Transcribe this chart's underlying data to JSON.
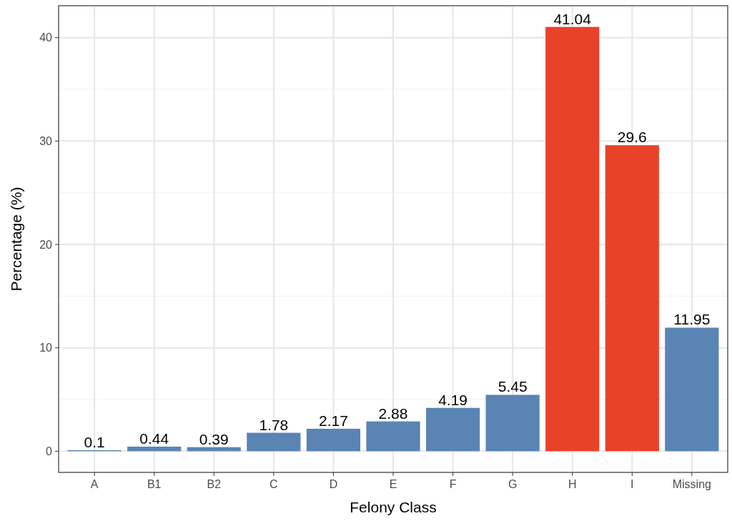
{
  "chart_data": {
    "type": "bar",
    "xlabel": "Felony Class",
    "ylabel": "Percentage (%)",
    "categories": [
      "A",
      "B1",
      "B2",
      "C",
      "D",
      "E",
      "F",
      "G",
      "H",
      "I",
      "Missing"
    ],
    "values": [
      0.1,
      0.44,
      0.39,
      1.78,
      2.17,
      2.88,
      4.19,
      5.45,
      41.04,
      29.6,
      11.95
    ],
    "colors": [
      "#5a84b4",
      "#5a84b4",
      "#5a84b4",
      "#5a84b4",
      "#5a84b4",
      "#5a84b4",
      "#5a84b4",
      "#5a84b4",
      "#e8432a",
      "#e8432a",
      "#5a84b4"
    ],
    "ylim": [
      -2.052,
      43.092
    ],
    "yticks": [
      0,
      10,
      20,
      30,
      40
    ],
    "grid": true,
    "data_labels": true
  }
}
